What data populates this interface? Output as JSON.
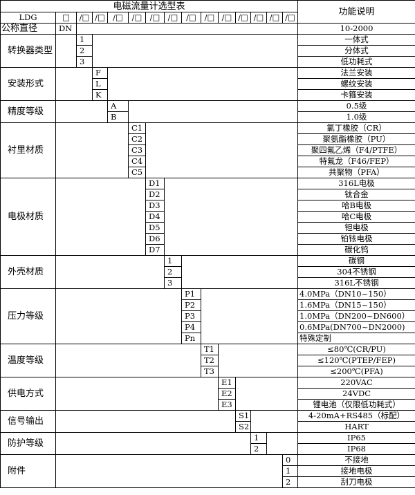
{
  "title": "电磁流量计选型表",
  "function_header": "功能说明",
  "model_row": {
    "prefix": "LDG",
    "first_box": "□",
    "boxes": [
      "/□",
      "/□",
      "/□",
      "/□",
      "/□",
      "/□",
      "/□",
      "/□",
      "/□",
      "/□",
      "/□",
      "/□",
      "/□"
    ]
  },
  "dn_row": {
    "label": "公称直径",
    "code": "DN",
    "function": "10-2000"
  },
  "groups": [
    {
      "label": "转换器类型",
      "col": 0,
      "items": [
        {
          "code": "1",
          "desc": "一体式"
        },
        {
          "code": "2",
          "desc": "分体式"
        },
        {
          "code": "3",
          "desc": "低功耗式"
        }
      ]
    },
    {
      "label": "安装形式",
      "col": 1,
      "items": [
        {
          "code": "F",
          "desc": "法兰安装"
        },
        {
          "code": "L",
          "desc": "螺纹安装"
        },
        {
          "code": "K",
          "desc": "卡箍安装"
        }
      ]
    },
    {
      "label": "精度等级",
      "col": 2,
      "items": [
        {
          "code": "A",
          "desc": "0.5级"
        },
        {
          "code": "B",
          "desc": "1.0级"
        }
      ]
    },
    {
      "label": "衬里材质",
      "col": 3,
      "items": [
        {
          "code": "C1",
          "desc": "氯丁橡胶（CR）"
        },
        {
          "code": "C2",
          "desc": "聚氨酯橡胶（PU）"
        },
        {
          "code": "C3",
          "desc": "聚四氟乙烯（F4/PTFE）"
        },
        {
          "code": "C4",
          "desc": "特氟龙（F46/FEP）"
        },
        {
          "code": "C5",
          "desc": "共聚物（PFA）"
        }
      ]
    },
    {
      "label": "电极材质",
      "col": 4,
      "items": [
        {
          "code": "D1",
          "desc": "316L电极"
        },
        {
          "code": "D2",
          "desc": "钛合金"
        },
        {
          "code": "D3",
          "desc": "哈B电极"
        },
        {
          "code": "D4",
          "desc": "哈C电极"
        },
        {
          "code": "D5",
          "desc": "钽电极"
        },
        {
          "code": "D6",
          "desc": "铂铱电极"
        },
        {
          "code": "D7",
          "desc": "碳化钨"
        }
      ]
    },
    {
      "label": "外壳材质",
      "col": 5,
      "items": [
        {
          "code": "1",
          "desc": "碳钢"
        },
        {
          "code": "2",
          "desc": "304不锈钢"
        },
        {
          "code": "3",
          "desc": "316L不锈钢"
        }
      ]
    },
    {
      "label": "压力等级",
      "col": 6,
      "left": true,
      "items": [
        {
          "code": "P1",
          "desc": "4.0MPa（DN10~150）"
        },
        {
          "code": "P2",
          "desc": "1.6MPa（DN15~150）"
        },
        {
          "code": "P3",
          "desc": "1.0MPa（DN200~DN600）"
        },
        {
          "code": "P4",
          "desc": "0.6MPa(DN700~DN2000)"
        },
        {
          "code": "Pn",
          "desc": "特殊定制"
        }
      ]
    },
    {
      "label": "温度等级",
      "col": 7,
      "items": [
        {
          "code": "T1",
          "desc": "≤80℃(CR/PU)"
        },
        {
          "code": "T2",
          "desc": "≤120℃(PTEP/FEP)"
        },
        {
          "code": "T3",
          "desc": "≤200℃(PFA)"
        }
      ]
    },
    {
      "label": "供电方式",
      "col": 8,
      "items": [
        {
          "code": "E1",
          "desc": "220VAC"
        },
        {
          "code": "E2",
          "desc": "24VDC"
        },
        {
          "code": "E3",
          "desc": "锂电池（仅限低功耗式）"
        }
      ]
    },
    {
      "label": "信号输出",
      "col": 9,
      "items": [
        {
          "code": "S1",
          "desc": "4-20mA+RS485（标配）"
        },
        {
          "code": "S2",
          "desc": "HART"
        }
      ]
    },
    {
      "label": "防护等级",
      "col": 10,
      "items": [
        {
          "code": "1",
          "desc": "IP65"
        },
        {
          "code": "2",
          "desc": "IP68"
        }
      ]
    },
    {
      "label": "附件",
      "col": 12,
      "items": [
        {
          "code": "0",
          "desc": "不接地"
        },
        {
          "code": "1",
          "desc": "接地电极"
        },
        {
          "code": "2",
          "desc": "刮刀电极"
        }
      ]
    }
  ]
}
